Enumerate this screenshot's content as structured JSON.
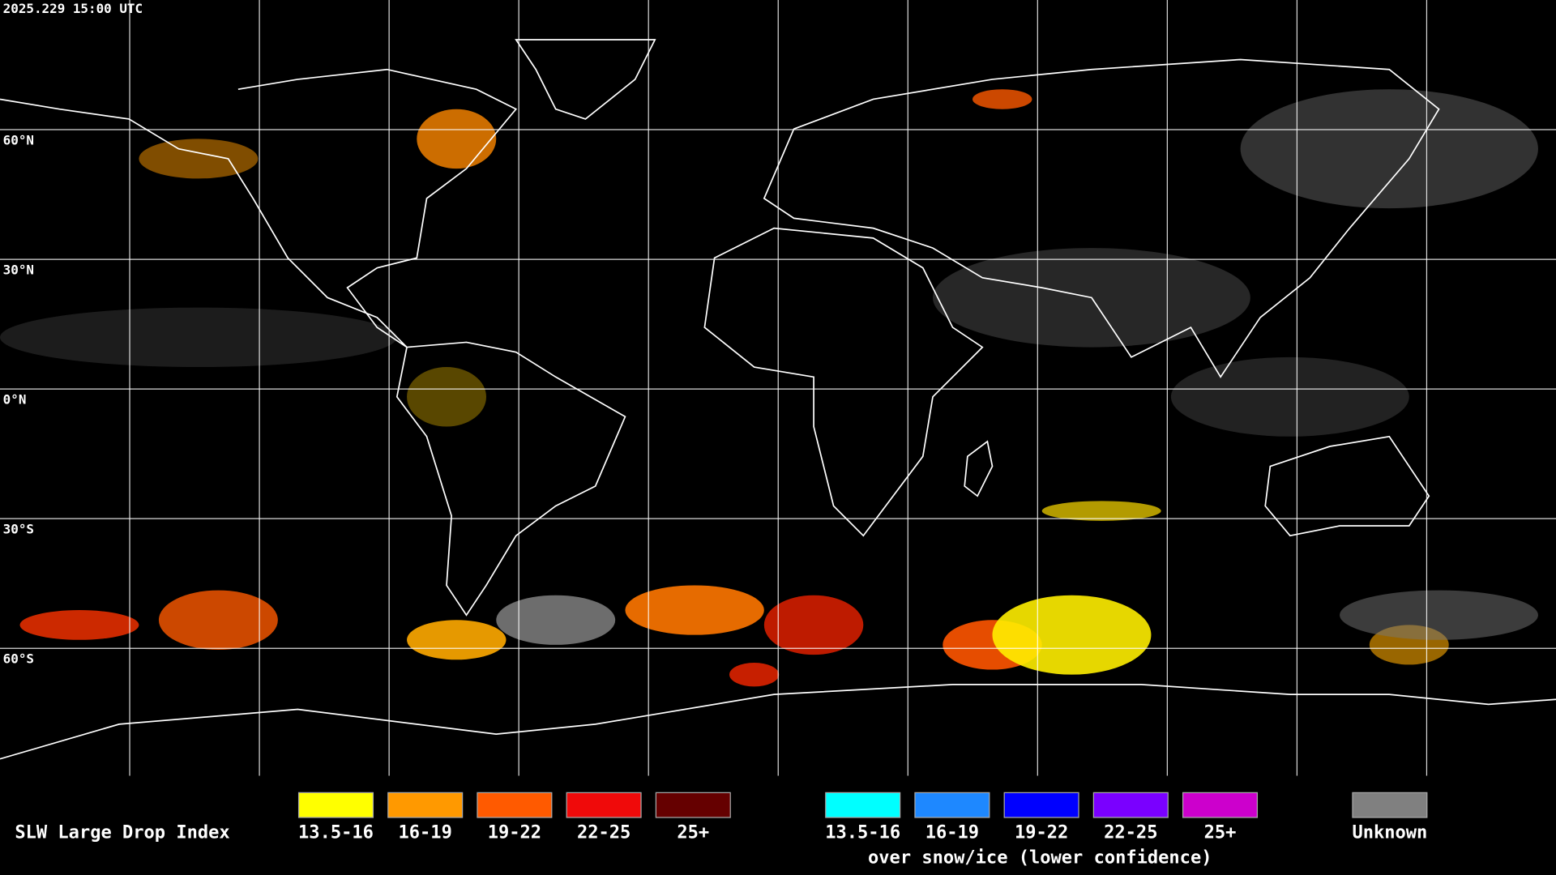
{
  "header": {
    "timestamp": "2025.229 15:00 UTC"
  },
  "map": {
    "latitude_labels": [
      "60°N",
      "30°N",
      "0°N",
      "30°S",
      "60°S"
    ]
  },
  "legend": {
    "title": "SLW Large Drop Index",
    "liquid": [
      {
        "label": "13.5-16",
        "color": "#ffff00"
      },
      {
        "label": "16-19",
        "color": "#ff9900"
      },
      {
        "label": "19-22",
        "color": "#ff5a00"
      },
      {
        "label": "22-25",
        "color": "#f00a0a"
      },
      {
        "label": "25+",
        "color": "#650000"
      }
    ],
    "snow_ice": [
      {
        "label": "13.5-16",
        "color": "#00ffff"
      },
      {
        "label": "16-19",
        "color": "#1e88ff"
      },
      {
        "label": "19-22",
        "color": "#0000ff"
      },
      {
        "label": "22-25",
        "color": "#7a00ff"
      },
      {
        "label": "25+",
        "color": "#cc00cc"
      }
    ],
    "snow_ice_note": "over snow/ice (lower confidence)",
    "unknown": {
      "label": "Unknown",
      "color": "#808080"
    }
  }
}
